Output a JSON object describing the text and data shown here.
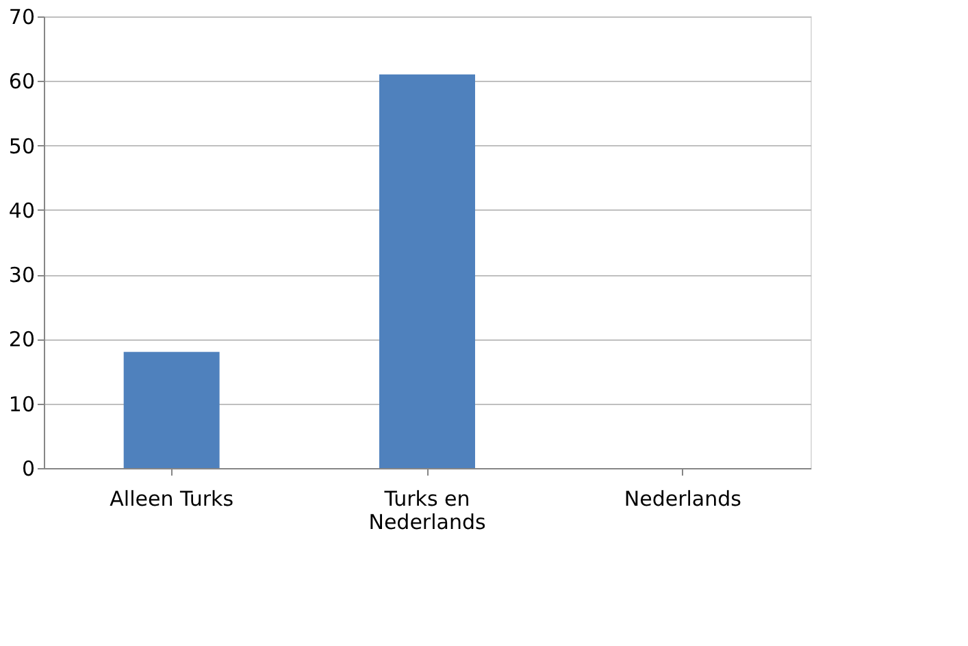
{
  "chart_data": {
    "type": "bar",
    "categories": [
      "Alleen Turks",
      "Turks en Nederlands",
      "Nederlands"
    ],
    "values": [
      18,
      61,
      0
    ],
    "color": "#4f81bd",
    "ylim": [
      0,
      70
    ],
    "yticks": [
      0,
      10,
      20,
      30,
      40,
      50,
      60,
      70
    ],
    "grid": "y"
  }
}
